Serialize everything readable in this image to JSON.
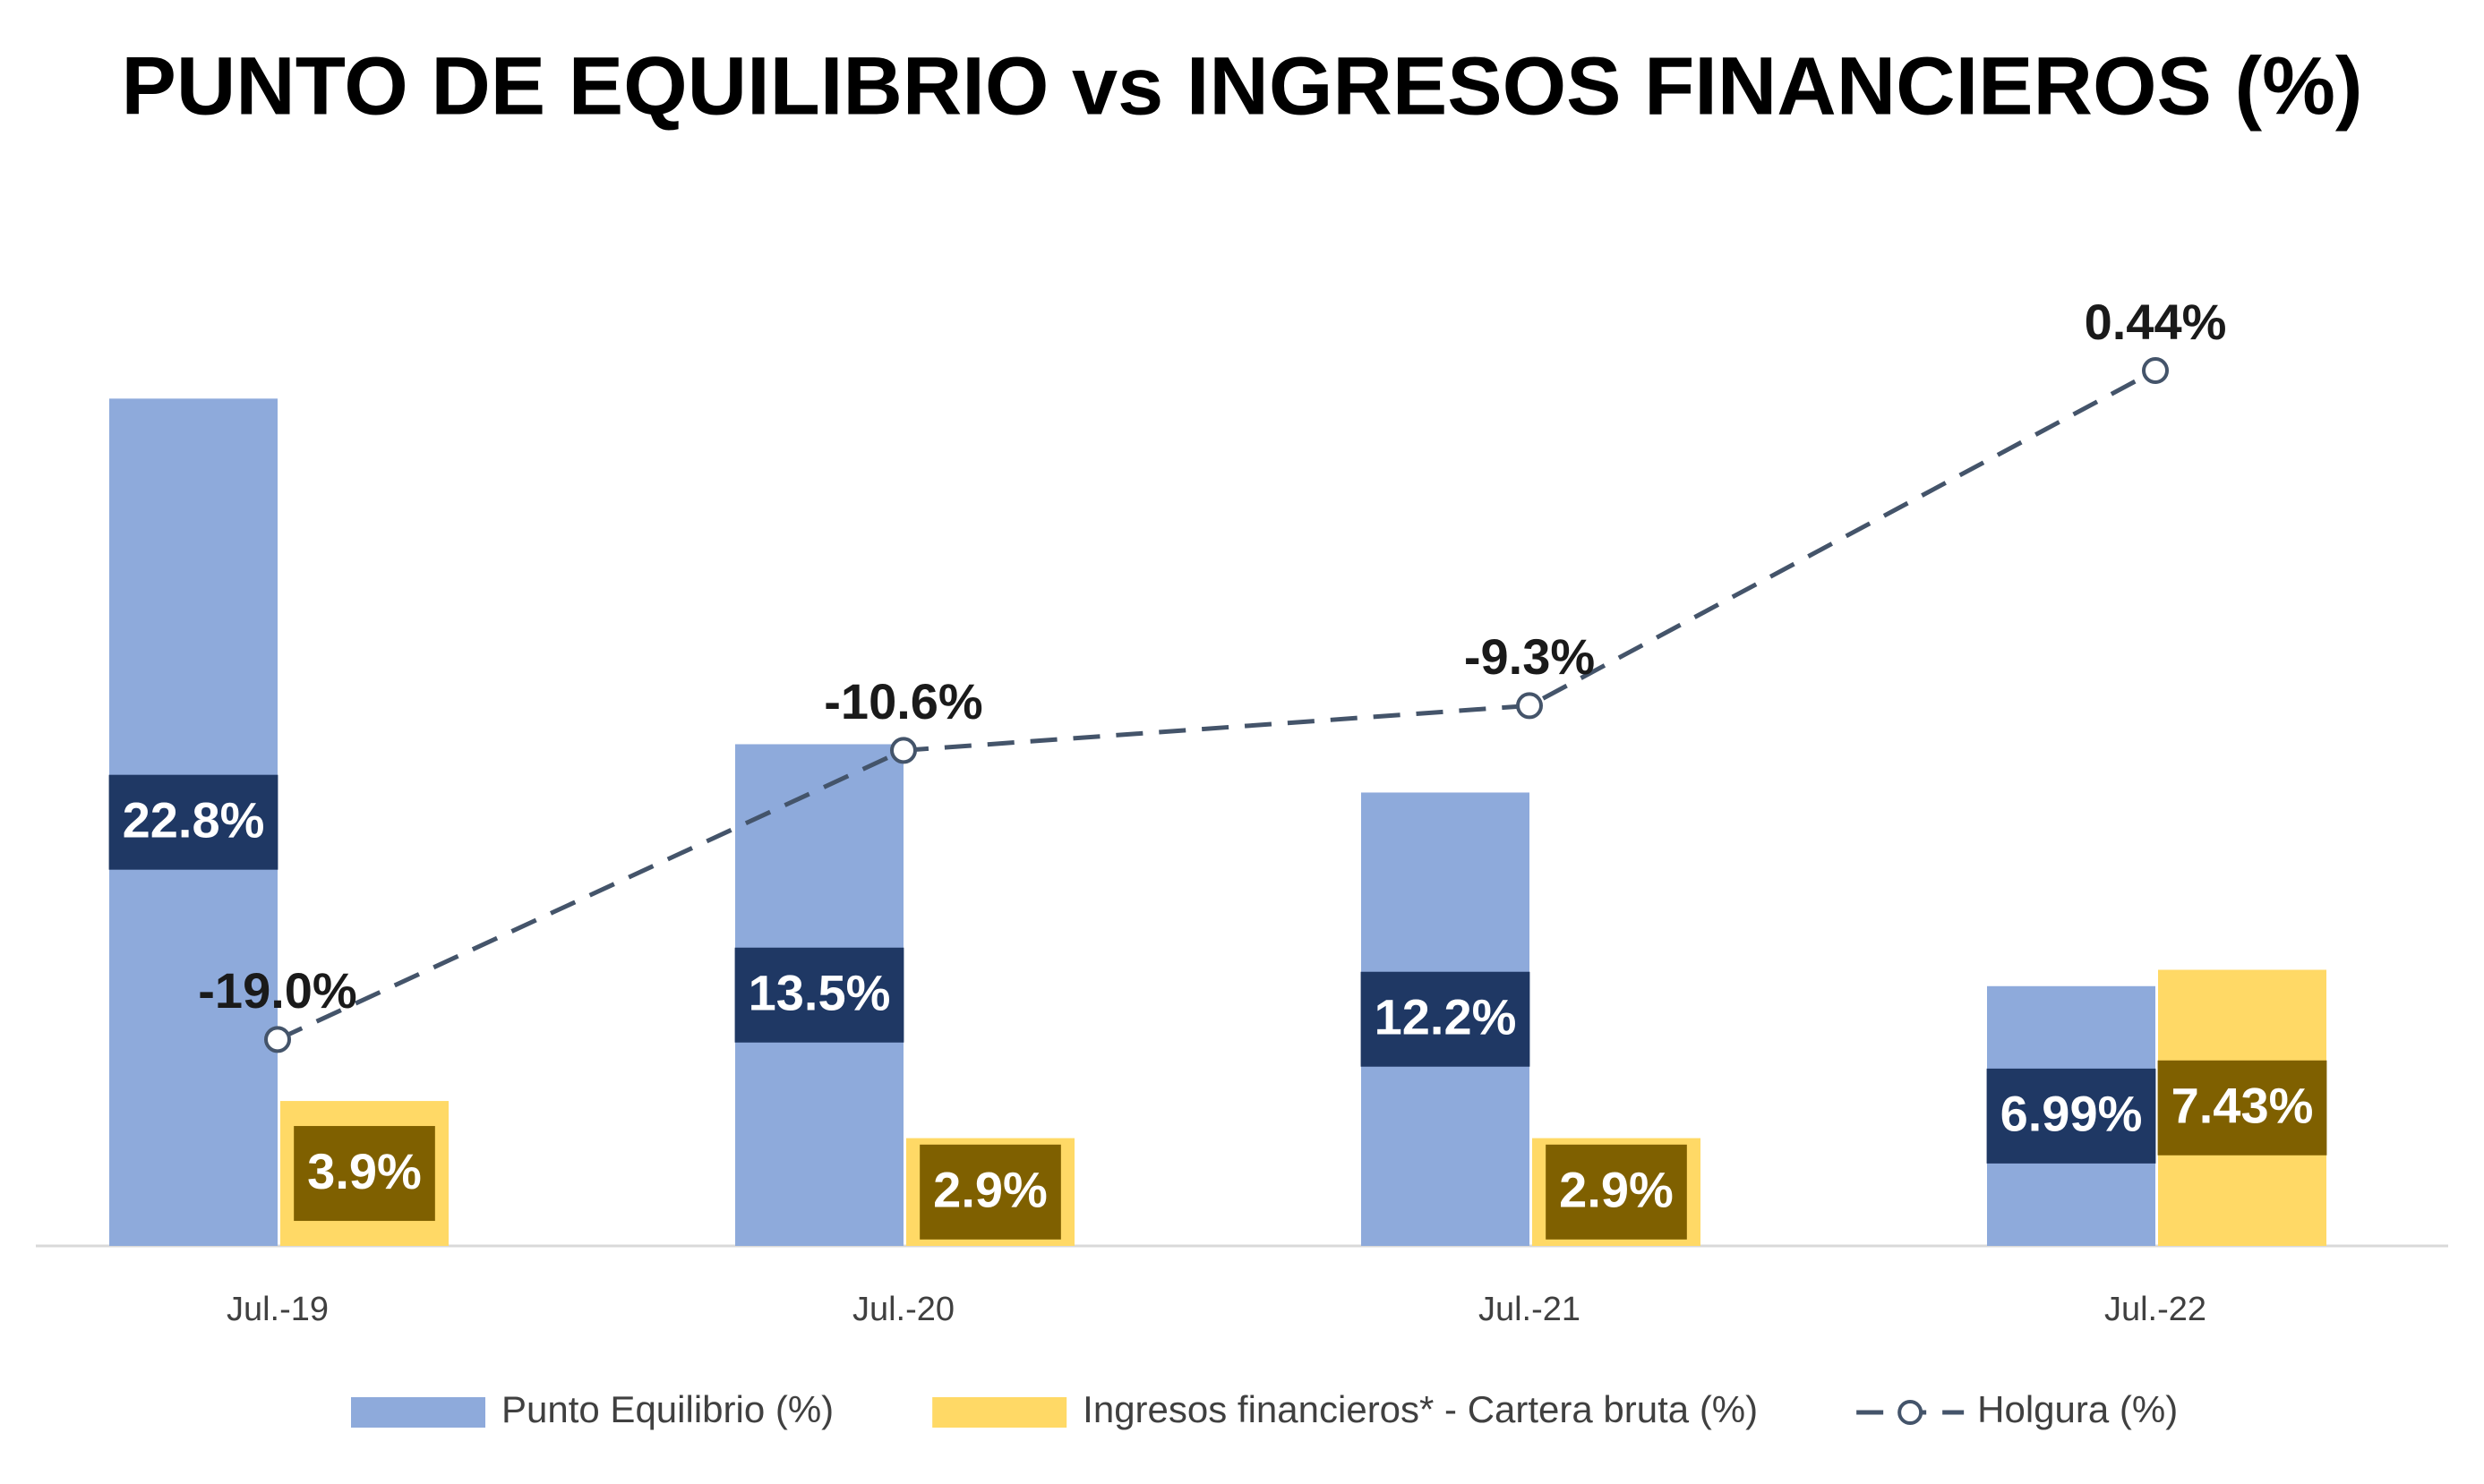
{
  "chart_data": {
    "type": "bar",
    "title": "PUNTO DE EQUILIBRIO vs INGRESOS FINANCIEROS (%)",
    "categories": [
      "Jul.-19",
      "Jul.-20",
      "Jul.-21",
      "Jul.-22"
    ],
    "ylim": [
      0,
      25
    ],
    "y2lim": [
      -25,
      2
    ],
    "legend": "bottom",
    "series": [
      {
        "name": "Punto Equilibrio (%)",
        "type": "bar",
        "color": "#8eaadb",
        "values": [
          22.8,
          13.5,
          12.2,
          6.99
        ],
        "value_labels": [
          "22.8%",
          "13.5%",
          "12.2%",
          "6.99%"
        ]
      },
      {
        "name": "Ingresos financieros* - Cartera bruta (%)",
        "type": "bar",
        "color": "#ffd966",
        "values": [
          3.9,
          2.9,
          2.9,
          7.43
        ],
        "value_labels": [
          "3.9%",
          "2.9%",
          "2.9%",
          "7.43%"
        ]
      },
      {
        "name": "Holgura (%)",
        "type": "line",
        "axis": "y2",
        "color": "#44546a",
        "values": [
          -19.0,
          -10.6,
          -9.3,
          0.44
        ],
        "value_labels": [
          "-19.0%",
          "-10.6%",
          "-9.3%",
          "0.44%"
        ]
      }
    ]
  }
}
